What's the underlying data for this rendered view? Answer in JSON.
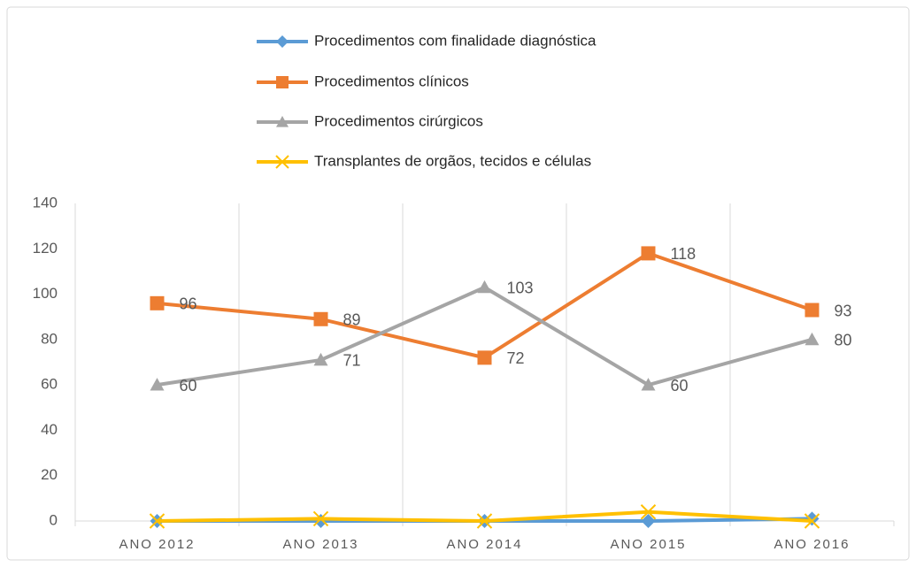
{
  "chart_data": {
    "type": "line",
    "categories": [
      "ANO 2012",
      "ANO 2013",
      "ANO 2014",
      "ANO 2015",
      "ANO 2016"
    ],
    "series": [
      {
        "name": "Procedimentos com finalidade diagnóstica",
        "color": "#5b9bd5",
        "marker": "diamond",
        "show_labels": false,
        "values": [
          0,
          0,
          0,
          0,
          1
        ]
      },
      {
        "name": "Procedimentos clínicos",
        "color": "#ed7d31",
        "marker": "square",
        "show_labels": true,
        "values": [
          96,
          89,
          72,
          118,
          93
        ]
      },
      {
        "name": "Procedimentos cirúrgicos",
        "color": "#a5a5a5",
        "marker": "triangle",
        "show_labels": true,
        "values": [
          60,
          71,
          103,
          60,
          80
        ]
      },
      {
        "name": "Transplantes de orgãos, tecidos e células",
        "color": "#ffc000",
        "marker": "x",
        "show_labels": false,
        "values": [
          0,
          1,
          0,
          4,
          0
        ]
      }
    ],
    "ylim": [
      0,
      140
    ],
    "yticks": [
      0,
      20,
      40,
      60,
      80,
      100,
      120,
      140
    ],
    "legend": "top",
    "grid": "vertical"
  }
}
